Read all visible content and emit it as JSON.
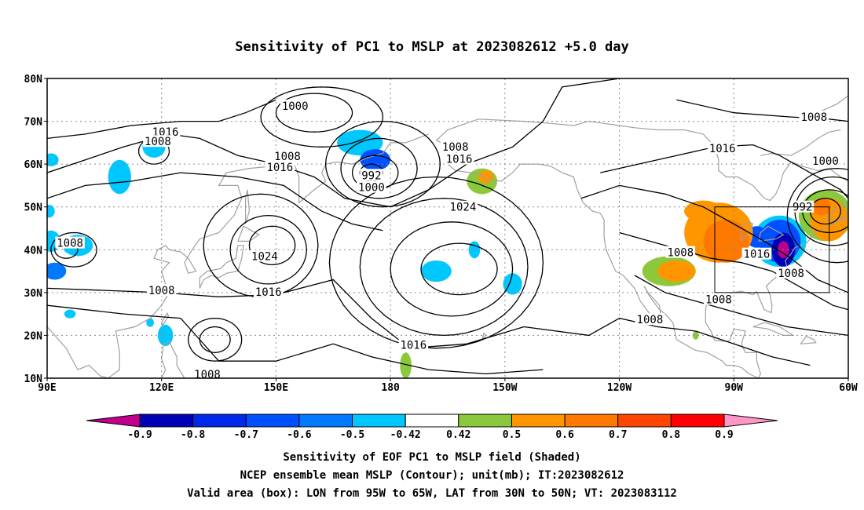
{
  "title": "Sensitivity of PC1 to MSLP at 2023082612 +5.0 day",
  "map": {
    "lon_range": [
      90,
      300
    ],
    "lat_range": [
      10,
      80
    ],
    "lon_tick_labels": [
      "90E",
      "120E",
      "150E",
      "180",
      "150W",
      "120W",
      "90W",
      "60W"
    ],
    "lat_tick_labels": [
      "80N",
      "70N",
      "60N",
      "50N",
      "40N",
      "30N",
      "20N",
      "10N"
    ],
    "grid": true,
    "valid_box": {
      "lon_w": -95,
      "lon_e": -65,
      "lat_s": 30,
      "lat_n": 50
    },
    "contour_color": "#000000",
    "coast_color": "#a0a0a0",
    "contour_labels": [
      {
        "text": "1000",
        "lon": 155,
        "lat": 73.6
      },
      {
        "text": "1008",
        "lon": 291,
        "lat": 71.0
      },
      {
        "text": "1016",
        "lon": 121,
        "lat": 67.5
      },
      {
        "text": "1008",
        "lon": 119,
        "lat": 65.3
      },
      {
        "text": "1016",
        "lon": 267,
        "lat": 63.7
      },
      {
        "text": "1008",
        "lon": 197,
        "lat": 64.1
      },
      {
        "text": "1008",
        "lon": 153,
        "lat": 61.9
      },
      {
        "text": "1016",
        "lon": 198,
        "lat": 61.2
      },
      {
        "text": "1016",
        "lon": 151,
        "lat": 59.3
      },
      {
        "text": "1000",
        "lon": 294,
        "lat": 60.8
      },
      {
        "text": "992",
        "lon": 175,
        "lat": 57.4
      },
      {
        "text": "1000",
        "lon": 175,
        "lat": 54.6
      },
      {
        "text": "1024",
        "lon": 199,
        "lat": 50.0
      },
      {
        "text": "992",
        "lon": 288,
        "lat": 50.0
      },
      {
        "text": "1008",
        "lon": 96,
        "lat": 41.6
      },
      {
        "text": "1024",
        "lon": 147,
        "lat": 38.5
      },
      {
        "text": "1008",
        "lon": 256,
        "lat": 39.4
      },
      {
        "text": "1016",
        "lon": 276,
        "lat": 39.0
      },
      {
        "text": "1008",
        "lon": 285,
        "lat": 34.6
      },
      {
        "text": "1008",
        "lon": 120,
        "lat": 30.5
      },
      {
        "text": "1016",
        "lon": 148,
        "lat": 30.2
      },
      {
        "text": "1008",
        "lon": 266,
        "lat": 28.4
      },
      {
        "text": "1008",
        "lon": 248,
        "lat": 23.7
      },
      {
        "text": "1016",
        "lon": 186,
        "lat": 17.8
      },
      {
        "text": "1008",
        "lon": 132,
        "lat": 10.9
      }
    ]
  },
  "colorbar": {
    "labels": [
      "-0.9",
      "-0.8",
      "-0.7",
      "-0.6",
      "-0.5",
      "-0.42",
      "0.42",
      "0.5",
      "0.6",
      "0.7",
      "0.8",
      "0.9"
    ],
    "colors": [
      "#c0008c",
      "#0000b4",
      "#0028e8",
      "#0050ff",
      "#0078ff",
      "#00c8ff",
      "#ffffff",
      "#8cc83c",
      "#ff9600",
      "#ff7800",
      "#ff4600",
      "#ff0000",
      "#ff96c8"
    ]
  },
  "shading": [
    {
      "lon": 109,
      "lat": 57,
      "rx": 3,
      "ry": 4,
      "level": "n42"
    },
    {
      "lon": 118,
      "lat": 64,
      "rx": 3,
      "ry": 2.5,
      "level": "n42"
    },
    {
      "lon": 91,
      "lat": 61,
      "rx": 2,
      "ry": 1.5,
      "level": "n42"
    },
    {
      "lon": 91,
      "lat": 42,
      "rx": 2.5,
      "ry": 2.5,
      "level": "n42"
    },
    {
      "lon": 98,
      "lat": 41,
      "rx": 4,
      "ry": 2.5,
      "level": "n42"
    },
    {
      "lon": 92,
      "lat": 35,
      "rx": 3,
      "ry": 2,
      "level": "n5"
    },
    {
      "lon": 90.5,
      "lat": 49,
      "rx": 1.5,
      "ry": 1.5,
      "level": "n42"
    },
    {
      "lon": 172,
      "lat": 65,
      "rx": 6,
      "ry": 3,
      "level": "n42"
    },
    {
      "lon": 176,
      "lat": 61,
      "rx": 4,
      "ry": 2.5,
      "level": "n6"
    },
    {
      "lon": 192,
      "lat": 35,
      "rx": 4,
      "ry": 2.5,
      "level": "n42"
    },
    {
      "lon": 202,
      "lat": 40,
      "rx": 1.5,
      "ry": 2,
      "level": "n42"
    },
    {
      "lon": 212,
      "lat": 32,
      "rx": 2.5,
      "ry": 2.5,
      "level": "n42"
    },
    {
      "lon": 121,
      "lat": 20,
      "rx": 2,
      "ry": 2.5,
      "level": "n42"
    },
    {
      "lon": 117,
      "lat": 23,
      "rx": 1,
      "ry": 1,
      "level": "n42"
    },
    {
      "lon": 96,
      "lat": 25,
      "rx": 1.5,
      "ry": 1,
      "level": "n42"
    },
    {
      "lon": 282,
      "lat": 42,
      "rx": 7,
      "ry": 6,
      "level": "n42"
    },
    {
      "lon": 282,
      "lat": 42,
      "rx": 5.5,
      "ry": 5,
      "level": "n6"
    },
    {
      "lon": 283,
      "lat": 40,
      "rx": 3,
      "ry": 4,
      "level": "n8"
    },
    {
      "lon": 283,
      "lat": 40,
      "rx": 1.5,
      "ry": 2,
      "level": "n9"
    },
    {
      "lon": 276,
      "lat": 43,
      "rx": 3,
      "ry": 2.5,
      "level": "n6"
    },
    {
      "lon": 266,
      "lat": 44,
      "rx": 9,
      "ry": 7,
      "level": "p6"
    },
    {
      "lon": 268,
      "lat": 42,
      "rx": 6,
      "ry": 5,
      "level": "p7"
    },
    {
      "lon": 262,
      "lat": 49,
      "rx": 5,
      "ry": 2.5,
      "level": "p6"
    },
    {
      "lon": 253,
      "lat": 35,
      "rx": 7,
      "ry": 3.5,
      "level": "p5"
    },
    {
      "lon": 255,
      "lat": 35,
      "rx": 5,
      "ry": 2.5,
      "level": "p6"
    },
    {
      "lon": 204,
      "lat": 56,
      "rx": 4,
      "ry": 3,
      "level": "p5"
    },
    {
      "lon": 205,
      "lat": 57,
      "rx": 2,
      "ry": 1.5,
      "level": "p6"
    },
    {
      "lon": 294,
      "lat": 48,
      "rx": 7,
      "ry": 6,
      "level": "p5"
    },
    {
      "lon": 295,
      "lat": 47,
      "rx": 5,
      "ry": 5,
      "level": "p6"
    },
    {
      "lon": 293,
      "lat": 50,
      "rx": 2.5,
      "ry": 2,
      "level": "p7"
    },
    {
      "lon": 184,
      "lat": 13,
      "rx": 1.5,
      "ry": 3,
      "level": "p5"
    },
    {
      "lon": 260,
      "lat": 20,
      "rx": 0.8,
      "ry": 1,
      "level": "p5"
    }
  ],
  "captions": [
    "Sensitivity of EOF PC1 to MSLP field (Shaded)",
    "NCEP ensemble mean MSLP (Contour); unit(mb); IT:2023082612",
    "Valid area (box): LON from 95W to 65W, LAT from 30N to 50N; VT: 2023083112"
  ]
}
